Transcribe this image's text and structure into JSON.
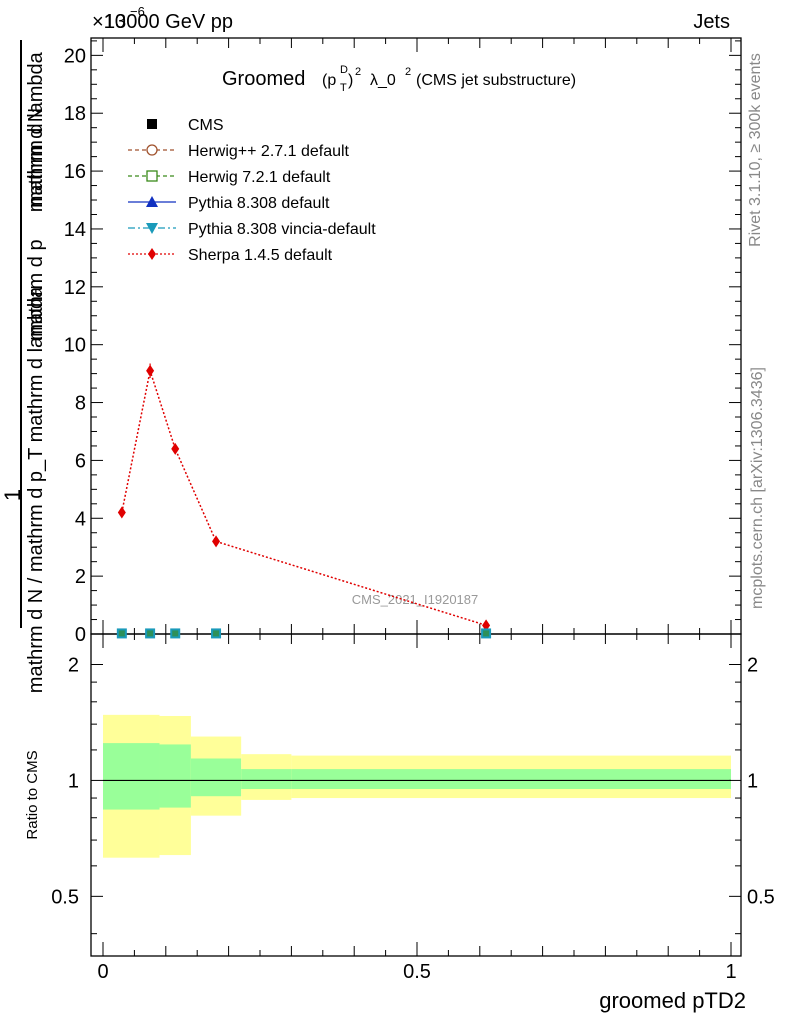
{
  "header": {
    "energy_label": "13000 GeV pp",
    "process_label": "Jets",
    "exponent_label": "×10",
    "exponent_power": "−6",
    "right_label_top": "Rivet 3.1.10, ≥ 300k events",
    "right_label_bottom": "mcplots.cern.ch [arXiv:1306.3436]",
    "watermark": "CMS_2021_I1920187"
  },
  "chart_data": [
    {
      "type": "line",
      "title": "Groomed (p_T^D)^2 λ_0^2 (CMS jet substructure)",
      "title_prefix": "Groomed",
      "title_suffix": "λ_0",
      "title_tail": "(CMS jet substructure)",
      "ylabel_numerator": "1",
      "ylabel_denominator": "mathrm d N / mathrm d p_T mathrm d lambda",
      "ylabel_parts": {
        "num_top": "mathrm d",
        "num_N": "N",
        "num_mid": "mathrm d p",
        "num_end": "mathrm d lambda",
        "den_a": "mathrm d N / mathrm d p",
        "den_b": "mathrm d lambda",
        "one": "1"
      },
      "xlim": [
        0,
        1
      ],
      "ylim": [
        0,
        20.6
      ],
      "y_scale_factor": "1e-6",
      "yticks": [
        0,
        2,
        4,
        6,
        8,
        10,
        12,
        14,
        16,
        18,
        20
      ],
      "ytick_labels": [
        "0",
        "2",
        "4",
        "6",
        "8",
        "10",
        "12",
        "14",
        "16",
        "18",
        "20"
      ],
      "legend": [
        {
          "name": "CMS",
          "color": "#000000",
          "marker": "square-filled",
          "line": "none"
        },
        {
          "name": "Herwig++ 2.7.1 default",
          "color": "#a0522d",
          "marker": "circle-open",
          "line": "dashed"
        },
        {
          "name": "Herwig 7.2.1 default",
          "color": "#3a8a1a",
          "marker": "square-open",
          "line": "dashed"
        },
        {
          "name": "Pythia 8.308 default",
          "color": "#1030c0",
          "marker": "triangle-up-filled",
          "line": "solid"
        },
        {
          "name": "Pythia 8.308 vincia-default",
          "color": "#1a9aba",
          "marker": "triangle-down-filled",
          "line": "dashdot"
        },
        {
          "name": "Sherpa 1.4.5 default",
          "color": "#e00000",
          "marker": "diamond-filled",
          "line": "dotted"
        }
      ],
      "series": [
        {
          "name": "Sherpa 1.4.5 default",
          "color": "#e00000",
          "x": [
            0.03,
            0.075,
            0.115,
            0.18,
            0.61
          ],
          "values": [
            4.2,
            9.1,
            6.4,
            3.2,
            0.3
          ],
          "errors": [
            0.1,
            0.25,
            0.15,
            0.1,
            0.05
          ]
        },
        {
          "name": "CMS",
          "color": "#000000",
          "x": [
            0.03,
            0.075,
            0.115,
            0.18,
            0.61
          ],
          "values": [
            0.02,
            0.02,
            0.02,
            0.02,
            0.02
          ]
        }
      ]
    },
    {
      "type": "area",
      "ylabel": "Ratio to CMS",
      "xlabel": "groomed pTD2",
      "xlim": [
        0,
        1
      ],
      "ylim": [
        0.35,
        2.4
      ],
      "yscale": "log",
      "yticks": [
        0.5,
        1,
        2
      ],
      "ytick_labels": [
        "0.5",
        "1",
        "2"
      ],
      "xticks": [
        0,
        0.5,
        1
      ],
      "xtick_labels": [
        "0",
        "0.5",
        "1"
      ],
      "bins": [
        {
          "lo": 0.0,
          "hi": 0.09,
          "green": [
            0.84,
            1.25
          ],
          "yellow": [
            0.63,
            1.48
          ]
        },
        {
          "lo": 0.09,
          "hi": 0.09,
          "green": [
            0.84,
            1.25
          ],
          "yellow": [
            0.63,
            1.48
          ]
        },
        {
          "lo": 0.09,
          "hi": 0.14,
          "green": [
            0.85,
            1.24
          ],
          "yellow": [
            0.64,
            1.47
          ]
        },
        {
          "lo": 0.14,
          "hi": 0.22,
          "green": [
            0.91,
            1.14
          ],
          "yellow": [
            0.81,
            1.3
          ]
        },
        {
          "lo": 0.22,
          "hi": 0.3,
          "green": [
            0.95,
            1.07
          ],
          "yellow": [
            0.89,
            1.17
          ]
        },
        {
          "lo": 0.3,
          "hi": 1.0,
          "green": [
            0.95,
            1.07
          ],
          "yellow": [
            0.9,
            1.16
          ]
        }
      ]
    }
  ]
}
